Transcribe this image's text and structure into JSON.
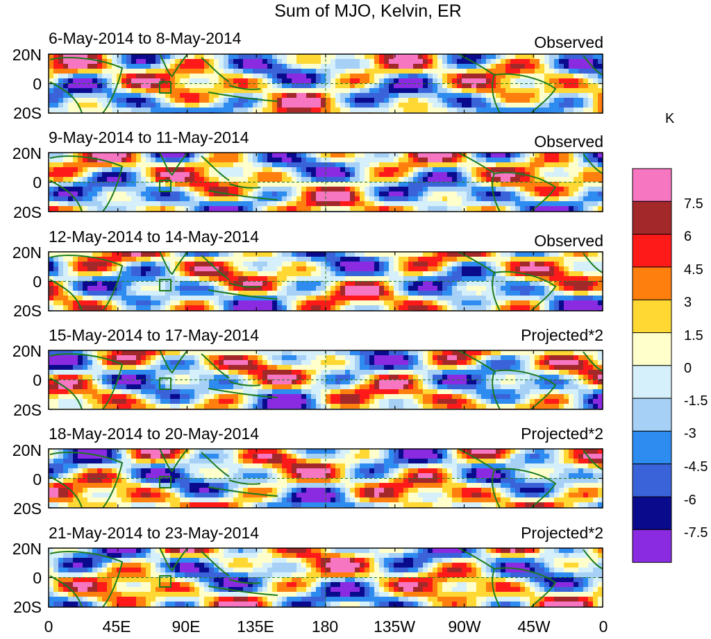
{
  "title": "Sum of MJO, Kelvin, ER",
  "panels": [
    {
      "date": "6-May-2014 to 8-May-2014",
      "type": "Observed"
    },
    {
      "date": "9-May-2014 to 11-May-2014",
      "type": "Observed"
    },
    {
      "date": "12-May-2014 to 14-May-2014",
      "type": "Observed"
    },
    {
      "date": "15-May-2014 to 17-May-2014",
      "type": "Projected*2"
    },
    {
      "date": "18-May-2014 to 20-May-2014",
      "type": "Projected*2"
    },
    {
      "date": "21-May-2014 to 23-May-2014",
      "type": "Projected*2"
    }
  ],
  "lat_ticks": [
    "20N",
    "0",
    "20S"
  ],
  "lon_ticks": [
    "0",
    "45E",
    "90E",
    "135E",
    "180",
    "135W",
    "90W",
    "45W",
    "0"
  ],
  "colorbar": {
    "unit": "K",
    "labels": [
      "7.5",
      "6",
      "4.5",
      "3",
      "1.5",
      "0",
      "-1.5",
      "-3",
      "-4.5",
      "-6",
      "-7.5"
    ],
    "colors": [
      "#f776c2",
      "#a3282a",
      "#ff1a1a",
      "#ff7f0e",
      "#ffd834",
      "#ffffcc",
      "#d6f0fb",
      "#a6d0f6",
      "#2e8bef",
      "#3a63d9",
      "#0a0a8c",
      "#8a2be2"
    ]
  },
  "map": {
    "land_outline_color": "#1a7a1a",
    "reference_line_color": "#1a7a1a"
  }
}
